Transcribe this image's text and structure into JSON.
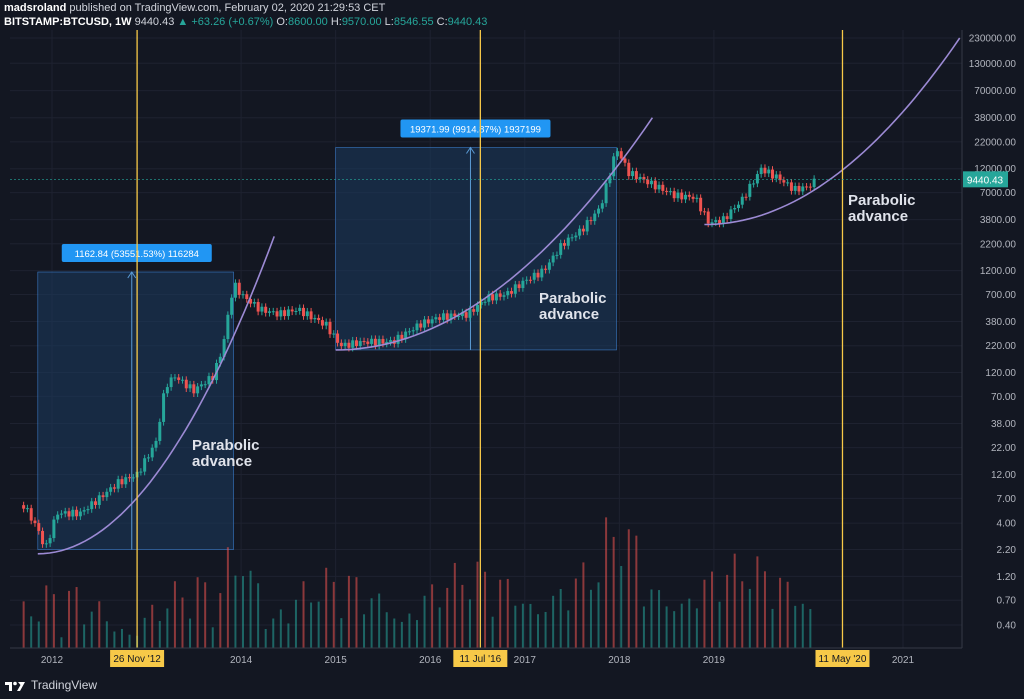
{
  "header": {
    "author": "madsroland",
    "published": "published on TradingView.com, February 02, 2020 21:29:53 CET",
    "symbol": "BITSTAMP:BTCUSD, 1W",
    "last": "9440.43",
    "change": "▲ +63.26 (+0.67%)",
    "o_label": "O:",
    "o_val": "8600.00",
    "h_label": "H:",
    "h_val": "9570.00",
    "l_label": "L:",
    "l_val": "8546.55",
    "c_label": "C:",
    "c_val": "9440.43"
  },
  "footer": {
    "brand": "TradingView"
  },
  "colors": {
    "bg": "#131722",
    "grid": "#1e2230",
    "up": "#26a69a",
    "down": "#ef5350",
    "curve": "#9c8ad4",
    "vline": "#f7c948",
    "box_fill": "#1b3a5e",
    "box_stroke": "#3a7bc8",
    "tooltip": "#2196f3"
  },
  "chart_data": {
    "type": "candlestick",
    "title": "BITSTAMP:BTCUSD, 1W",
    "y_scale": "log",
    "grid": true,
    "price_axis_labels": [
      "230000.00",
      "130000.00",
      "70000.00",
      "38000.00",
      "22000.00",
      "12000.00",
      "7000.00",
      "3800.00",
      "2200.00",
      "1200.00",
      "700.00",
      "380.00",
      "220.00",
      "120.00",
      "70.00",
      "38.00",
      "22.00",
      "12.00",
      "7.00",
      "4.00",
      "2.20",
      "1.20",
      "0.70",
      "0.40"
    ],
    "time_axis_labels": [
      "2012",
      "2014",
      "2015",
      "2016",
      "2017",
      "2018",
      "2019",
      "2021"
    ],
    "highlighted_time_labels": [
      "26 Nov '12",
      "11 Jul '16",
      "11 May '20"
    ],
    "last_price_label": "9440.43",
    "price_path_years": [
      2011.7,
      2011.85,
      2011.93,
      2012.05,
      2012.3,
      2012.5,
      2012.7,
      2012.9,
      2013.1,
      2013.2,
      2013.3,
      2013.5,
      2013.7,
      2013.8,
      2013.92,
      2014.0,
      2014.2,
      2014.4,
      2014.6,
      2014.9,
      2015.05,
      2015.3,
      2015.6,
      2015.9,
      2016.1,
      2016.4,
      2016.6,
      2016.8,
      2017.0,
      2017.2,
      2017.4,
      2017.6,
      2017.8,
      2017.97,
      2018.1,
      2018.4,
      2018.6,
      2018.8,
      2018.95,
      2019.1,
      2019.3,
      2019.5,
      2019.7,
      2019.85,
      2020.0,
      2020.09
    ],
    "price_path_values": [
      6,
      3.5,
      2.2,
      5,
      5,
      7,
      10,
      12,
      25,
      90,
      110,
      80,
      110,
      200,
      900,
      700,
      500,
      450,
      500,
      350,
      220,
      240,
      240,
      360,
      420,
      450,
      650,
      700,
      950,
      1200,
      2200,
      3000,
      5000,
      19000,
      11000,
      8000,
      6500,
      6300,
      3500,
      3800,
      6000,
      12000,
      9500,
      7500,
      8000,
      9440
    ],
    "annotations": [
      {
        "type": "box",
        "start_year": 2011.85,
        "end_year": 2013.92,
        "low": 2.2,
        "high": 1162.84,
        "label": "1162.84 (53551.53%) 116284"
      },
      {
        "type": "box",
        "start_year": 2015.0,
        "end_year": 2017.97,
        "low": 200,
        "high": 19371.99,
        "label": "19371.99 (9914.87%) 1937199"
      }
    ],
    "text_annotations": [
      "Parabolic advance",
      "Parabolic advance",
      "Parabolic advance"
    ],
    "vertical_lines": [
      "26 Nov '12",
      "11 Jul '16",
      "11 May '20"
    ],
    "curves": [
      {
        "from_year": 2011.85,
        "to_year": 2014.35,
        "from": 2.0,
        "to": 2600
      },
      {
        "from_year": 2015.0,
        "to_year": 2018.35,
        "from": 200,
        "to": 38000
      },
      {
        "from_year": 2018.9,
        "to_year": 2021.6,
        "from": 3400,
        "to": 230000
      }
    ]
  },
  "texts": {
    "parabolic_1": "Parabolic advance",
    "parabolic_2": "Parabolic advance",
    "parabolic_3": "Parabolic advance",
    "box1_label": "1162.84 (53551.53%) 116284",
    "box2_label": "19371.99 (9914.87%) 1937199"
  }
}
